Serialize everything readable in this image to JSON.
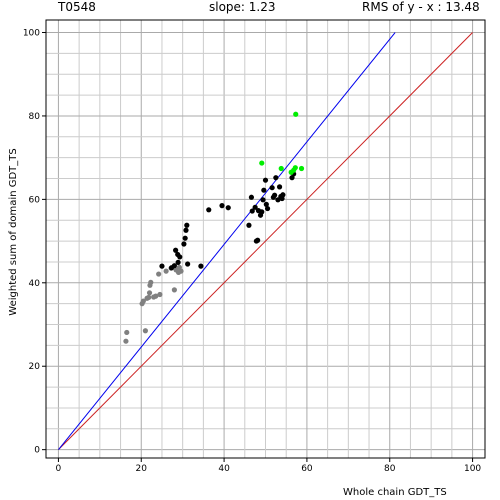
{
  "header": {
    "target": "T0548",
    "slope": "slope: 1.23",
    "rms": "RMS of  y - x : 13.48"
  },
  "chart_data": {
    "type": "scatter",
    "xlabel": "Whole chain GDT_TS",
    "ylabel": "Weighted sum of domain GDT_TS",
    "xlim": [
      -3,
      103
    ],
    "ylim": [
      -2,
      103
    ],
    "grid": true,
    "x_ticks": [
      0,
      20,
      40,
      60,
      80,
      100
    ],
    "y_ticks": [
      0,
      20,
      40,
      60,
      80,
      100
    ],
    "lines": [
      {
        "kind": "diagonal y = x",
        "color": "#cc2222",
        "points": [
          [
            0,
            0
          ],
          [
            100,
            100
          ]
        ]
      },
      {
        "kind": "fit y = 1.23x",
        "color": "#0000ee",
        "points": [
          [
            0,
            0
          ],
          [
            81.3,
            100
          ]
        ]
      }
    ],
    "series": [
      {
        "color": "#808080",
        "points": [
          [
            16.3,
            26.0
          ],
          [
            16.5,
            28.1
          ],
          [
            20.2,
            35.0
          ],
          [
            20.5,
            35.6
          ],
          [
            21.0,
            28.5
          ],
          [
            21.4,
            36.3
          ],
          [
            21.8,
            36.5
          ],
          [
            22.0,
            37.6
          ],
          [
            22.1,
            39.4
          ],
          [
            22.3,
            40.1
          ],
          [
            23.0,
            36.6
          ],
          [
            23.5,
            36.8
          ],
          [
            24.2,
            42.1
          ],
          [
            24.5,
            37.2
          ],
          [
            26.0,
            42.8
          ],
          [
            27.2,
            43.5
          ],
          [
            28.0,
            38.3
          ],
          [
            28.4,
            43.1
          ],
          [
            29.0,
            42.5
          ],
          [
            29.2,
            43.7
          ],
          [
            29.6,
            42.8
          ]
        ]
      },
      {
        "color": "#000000",
        "points": [
          [
            25.0,
            44.0
          ],
          [
            27.3,
            43.6
          ],
          [
            28.0,
            44.1
          ],
          [
            28.3,
            47.8
          ],
          [
            28.8,
            46.8
          ],
          [
            28.9,
            44.9
          ],
          [
            29.3,
            46.2
          ],
          [
            30.3,
            49.3
          ],
          [
            30.6,
            50.7
          ],
          [
            30.8,
            52.6
          ],
          [
            31.0,
            53.8
          ],
          [
            31.2,
            44.5
          ],
          [
            34.4,
            44.0
          ],
          [
            36.3,
            57.5
          ],
          [
            39.5,
            58.5
          ],
          [
            41.0,
            58.0
          ],
          [
            46.0,
            53.8
          ],
          [
            46.6,
            60.5
          ],
          [
            46.8,
            57.2
          ],
          [
            47.5,
            58.1
          ],
          [
            47.8,
            50.0
          ],
          [
            48.1,
            50.2
          ],
          [
            48.3,
            57.3
          ],
          [
            48.8,
            56.2
          ],
          [
            49.1,
            57.0
          ],
          [
            49.4,
            59.9
          ],
          [
            49.6,
            62.2
          ],
          [
            50.0,
            64.6
          ],
          [
            50.2,
            58.8
          ],
          [
            50.5,
            57.8
          ],
          [
            51.6,
            62.8
          ],
          [
            51.9,
            60.5
          ],
          [
            52.2,
            61.0
          ],
          [
            52.5,
            65.2
          ],
          [
            53.0,
            59.9
          ],
          [
            53.4,
            63.0
          ],
          [
            53.7,
            60.7
          ],
          [
            54.0,
            60.2
          ],
          [
            54.2,
            61.1
          ],
          [
            56.4,
            65.2
          ],
          [
            56.8,
            66.1
          ]
        ]
      },
      {
        "color": "#00ee00",
        "points": [
          [
            49.1,
            68.7
          ],
          [
            53.8,
            67.4
          ],
          [
            56.2,
            66.5
          ],
          [
            56.8,
            67.0
          ],
          [
            57.2,
            67.6
          ],
          [
            57.3,
            80.4
          ],
          [
            58.7,
            67.4
          ]
        ]
      }
    ]
  }
}
